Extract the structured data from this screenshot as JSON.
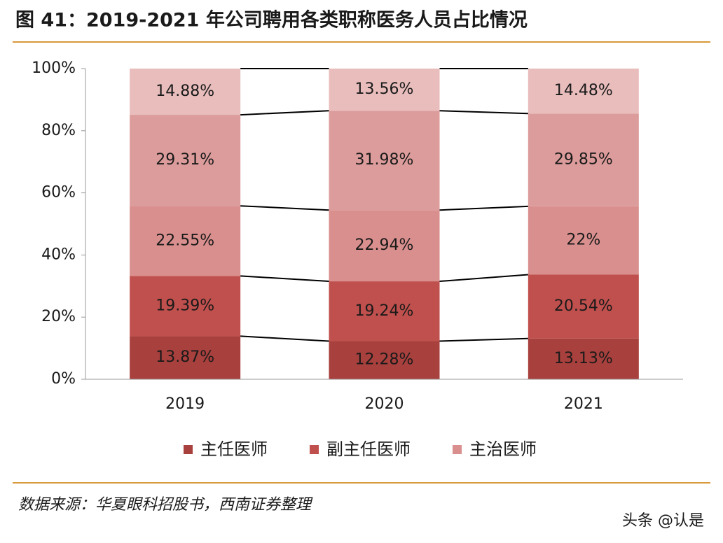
{
  "chart_data": {
    "type": "stacked-bar",
    "title": "图 41：2019-2021 年公司聘用各类职称医务人员占比情况",
    "categories": [
      "2019",
      "2020",
      "2021"
    ],
    "series": [
      {
        "name": "主任医师",
        "color": "#a8403d",
        "values": [
          13.87,
          12.28,
          13.13
        ],
        "value_labels": [
          "13.87%",
          "12.28%",
          "13.13%"
        ]
      },
      {
        "name": "副主任医师",
        "color": "#c0504d",
        "values": [
          19.39,
          19.24,
          20.54
        ],
        "value_labels": [
          "19.39%",
          "19.24%",
          "20.54%"
        ]
      },
      {
        "name": "主治医师",
        "color": "#d98f8d",
        "values": [
          22.55,
          22.94,
          22
        ],
        "value_labels": [
          "22.55%",
          "22.94%",
          "22%"
        ]
      },
      {
        "color": "#dc9c9b",
        "values": [
          29.31,
          31.98,
          29.85
        ],
        "value_labels": [
          "29.31%",
          "31.98%",
          "29.85%"
        ]
      },
      {
        "color": "#e8bdbc",
        "values": [
          14.88,
          13.56,
          14.48
        ],
        "value_labels": [
          "14.88%",
          "13.56%",
          "14.48%"
        ]
      }
    ],
    "ylim": [
      0,
      100
    ],
    "yticks": [
      {
        "value": 0,
        "label": "0%"
      },
      {
        "value": 20,
        "label": "20%"
      },
      {
        "value": 40,
        "label": "40%"
      },
      {
        "value": 60,
        "label": "60%"
      },
      {
        "value": 80,
        "label": "80%"
      },
      {
        "value": 100,
        "label": "100%"
      }
    ],
    "source": "数据来源：华夏眼科招股书，西南证券整理",
    "watermark": "头条 @认是"
  }
}
